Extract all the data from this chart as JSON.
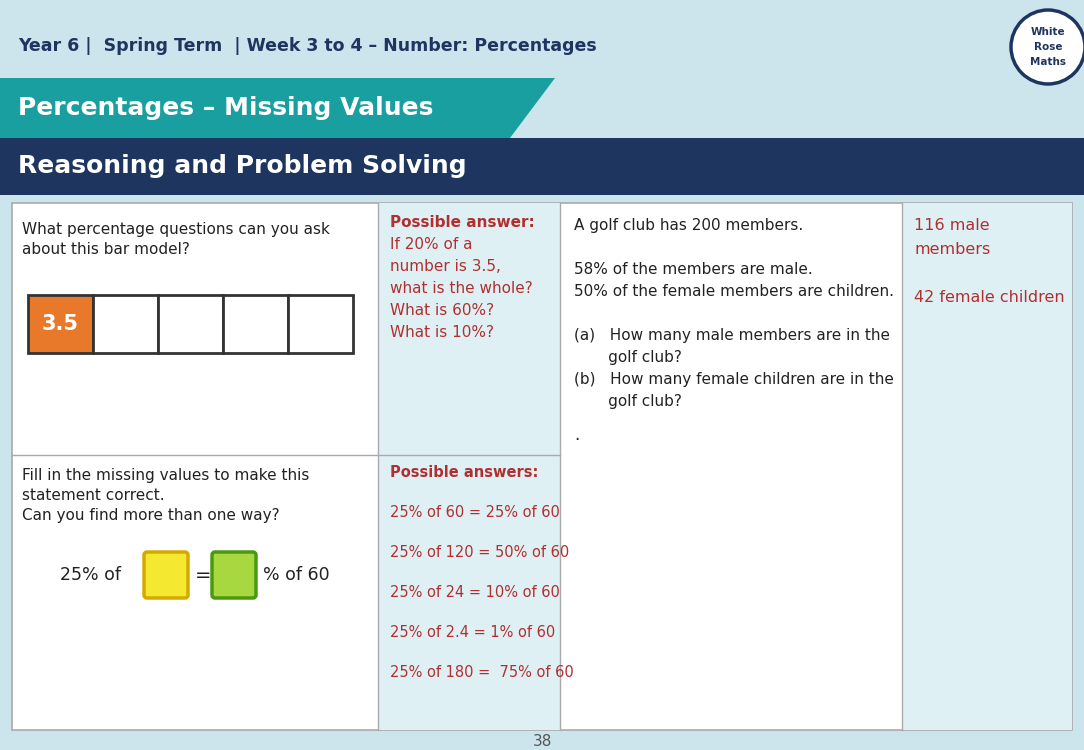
{
  "title_bar_text": "Year 6 |  Spring Term  | Week 3 to 4 – Number: Percentages",
  "teal_banner_text": "Percentages – Missing Values",
  "blue_banner_text": "Reasoning and Problem Solving",
  "bg_color": "#cce5ed",
  "teal_color": "#1a9fa0",
  "navy_color": "#1e3560",
  "white": "#ffffff",
  "answer_bg": "#dff0f5",
  "red_text": "#b03030",
  "dark_text": "#222222",
  "q1_question_line1": "What percentage questions can you ask",
  "q1_question_line2": "about this bar model?",
  "q1_answer_lines": [
    "Possible answer:",
    "If 20% of a",
    "number is 3.5,",
    "what is the whole?",
    "What is 60%?",
    "What is 10%?"
  ],
  "q2_question_lines": [
    "Fill in the missing values to make this",
    "statement correct.",
    "Can you find more than one way?"
  ],
  "q2_answer_lines": [
    "Possible answers:",
    "",
    "25% of 60 = 25% of 60",
    "",
    "25% of 120 = 50% of 60",
    "",
    "25% of 24 = 10% of 60",
    "",
    "25% of 2.4 = 1% of 60",
    "",
    "25% of 180 =  75% of 60"
  ],
  "q3_question_lines": [
    "A golf club has 200 members.",
    "",
    "58% of the members are male.",
    "50% of the female members are children.",
    "",
    "(a)   How many male members are in the",
    "       golf club?",
    "(b)   How many female children are in the",
    "       golf club?"
  ],
  "q3_answer_lines": [
    "116 male",
    "members",
    "",
    "42 female children"
  ],
  "bar_value": "3.5",
  "bar_orange": "#e8792a",
  "page_number": "38",
  "yellow_box_fill": "#f5e830",
  "yellow_box_edge": "#d4aa00",
  "green_box_fill": "#a8d840",
  "green_box_edge": "#4a9910"
}
